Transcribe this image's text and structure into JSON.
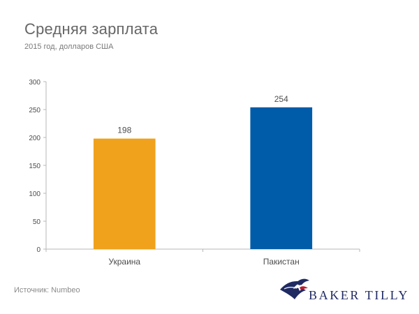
{
  "header": {
    "title": "Средняя зарплата",
    "subtitle": "2015 год, долларов США"
  },
  "footer": {
    "source": "Источник: Numbeo",
    "logo_text": "BAKER TILLY"
  },
  "colors": {
    "ukraine": "#f0a21d",
    "pakistan": "#005ca8",
    "axis": "#b7b7b7",
    "text": "#4d4d4d"
  },
  "chart_data": {
    "type": "bar",
    "categories": [
      "Украина",
      "Пакистан"
    ],
    "values": [
      198,
      254
    ],
    "ylim": [
      0,
      300
    ],
    "yticks": [
      0,
      50,
      100,
      150,
      200,
      250,
      300
    ],
    "grid": false,
    "legend": "none"
  }
}
